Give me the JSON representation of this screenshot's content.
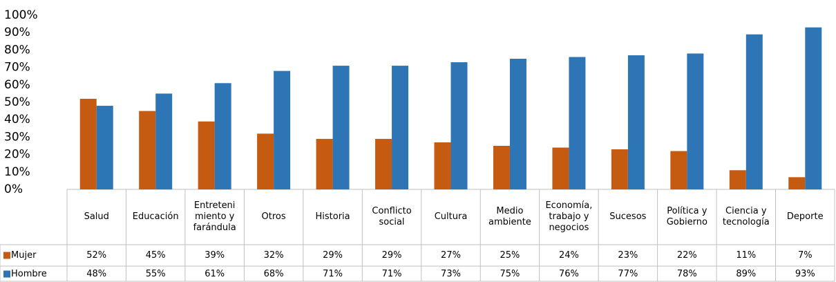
{
  "chart_data": {
    "type": "bar",
    "categories": [
      "Salud",
      "Educación",
      "Entreteni\nmiento y\nfarándula",
      "Otros",
      "Historia",
      "Conflicto\nsocial",
      "Cultura",
      "Medio\nambiente",
      "Economía,\ntrabajo y\nnegocios",
      "Sucesos",
      "Política y\nGobierno",
      "Ciencia y\ntecnología",
      "Deporte"
    ],
    "series": [
      {
        "name": "Mujer",
        "color": "#c55a11",
        "values": [
          52,
          45,
          39,
          32,
          29,
          29,
          27,
          25,
          24,
          23,
          22,
          11,
          7
        ],
        "value_labels": [
          "52%",
          "45%",
          "39%",
          "32%",
          "29%",
          "29%",
          "27%",
          "25%",
          "24%",
          "23%",
          "22%",
          "11%",
          "7%"
        ]
      },
      {
        "name": "Hombre",
        "color": "#2e75b6",
        "values": [
          48,
          55,
          61,
          68,
          71,
          71,
          73,
          75,
          76,
          77,
          78,
          89,
          93
        ],
        "value_labels": [
          "48%",
          "55%",
          "61%",
          "68%",
          "71%",
          "71%",
          "73%",
          "75%",
          "76%",
          "77%",
          "78%",
          "89%",
          "93%"
        ]
      }
    ],
    "ylim": [
      0,
      100
    ],
    "yticks": [
      {
        "value": 0,
        "label": "0%"
      },
      {
        "value": 10,
        "label": "10%"
      },
      {
        "value": 20,
        "label": "20%"
      },
      {
        "value": 30,
        "label": "30%"
      },
      {
        "value": 40,
        "label": "40%"
      },
      {
        "value": 50,
        "label": "50%"
      },
      {
        "value": 60,
        "label": "60%"
      },
      {
        "value": 70,
        "label": "70%"
      },
      {
        "value": 80,
        "label": "80%"
      },
      {
        "value": 90,
        "label": "90%"
      },
      {
        "value": 100,
        "label": "100%"
      }
    ],
    "grid": false
  }
}
